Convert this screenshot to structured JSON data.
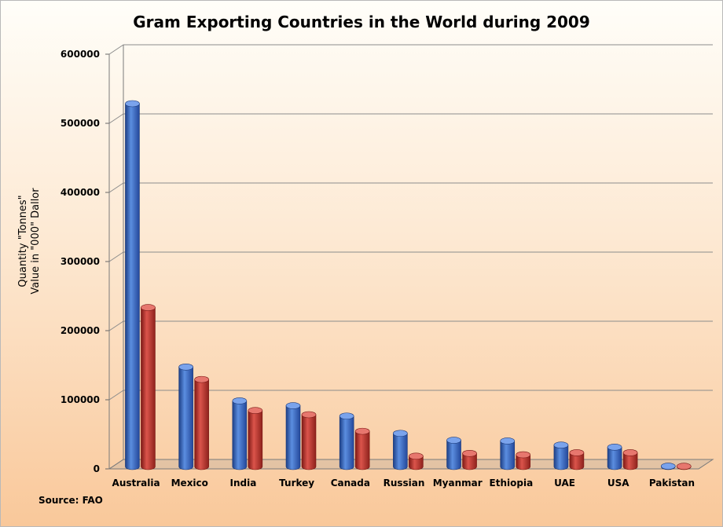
{
  "chart_data": {
    "type": "bar",
    "title": "Gram Exporting Countries in the World during 2009",
    "ylabel_lines": [
      "Quantity \"Tonnes\"",
      "Value in \"000\" Dallor"
    ],
    "xlabel": "",
    "source": "Source: FAO",
    "categories": [
      "Australia",
      "Mexico",
      "India",
      "Turkey",
      "Canada",
      "Russian",
      "Myanmar",
      "Ethiopia",
      "UAE",
      "USA",
      "Pakistan"
    ],
    "series": [
      {
        "values": [
          525000,
          144000,
          95000,
          88000,
          73000,
          48000,
          38000,
          37000,
          31000,
          28000,
          500
        ]
      },
      {
        "values": [
          230000,
          126000,
          81000,
          75000,
          51000,
          15000,
          19000,
          17000,
          20000,
          20000,
          300
        ]
      }
    ],
    "ylim": [
      0,
      600000
    ],
    "yticks": [
      0,
      100000,
      200000,
      300000,
      400000,
      500000,
      600000
    ],
    "colors": [
      "#3b6cc4",
      "#c0392b"
    ],
    "grid": true,
    "legend": "none"
  }
}
